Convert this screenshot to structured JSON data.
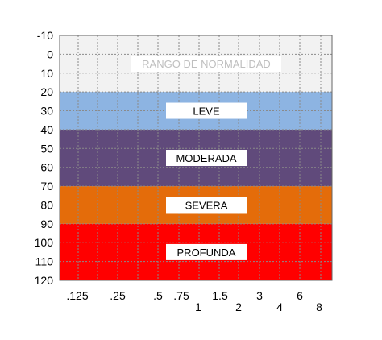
{
  "chart_data": {
    "type": "area",
    "title": "",
    "xlabel": "",
    "ylabel": "",
    "ylim": [
      -10,
      120
    ],
    "y_inverted": true,
    "grid": true,
    "y_ticks": [
      "-10",
      "0",
      "10",
      "20",
      "30",
      "40",
      "50",
      "60",
      "70",
      "80",
      "90",
      "100",
      "110",
      "120"
    ],
    "x_tick_labels": [
      {
        "label": ".125",
        "row": 1
      },
      {
        "label": ".25",
        "row": 1
      },
      {
        "label": ".5",
        "row": 1
      },
      {
        "label": ".75",
        "row": 1
      },
      {
        "label": "1",
        "row": 2
      },
      {
        "label": "1.5",
        "row": 1
      },
      {
        "label": "2",
        "row": 2
      },
      {
        "label": "3",
        "row": 1
      },
      {
        "label": "4",
        "row": 2
      },
      {
        "label": "6",
        "row": 1
      },
      {
        "label": "8",
        "row": 2
      }
    ],
    "bands": [
      {
        "label": "RANGO DE NORMALIDAD",
        "from": -10,
        "to": 20,
        "color": "#f2f2f2",
        "label_color": "#bfbfbf"
      },
      {
        "label": "LEVE",
        "from": 20,
        "to": 40,
        "color": "#8db4e2",
        "label_color": "#000000"
      },
      {
        "label": "MODERADA",
        "from": 40,
        "to": 70,
        "color": "#604a7b",
        "label_color": "#000000"
      },
      {
        "label": "SEVERA",
        "from": 70,
        "to": 90,
        "color": "#e46c0a",
        "label_color": "#000000"
      },
      {
        "label": "PROFUNDA",
        "from": 90,
        "to": 120,
        "color": "#ff0000",
        "label_color": "#000000"
      }
    ]
  }
}
